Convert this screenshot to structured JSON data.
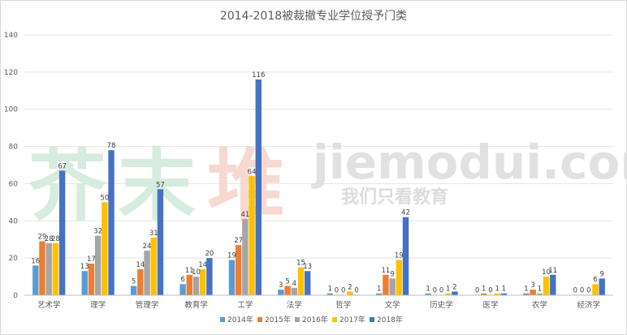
{
  "chart_data": {
    "type": "bar",
    "title": "2014-2018被裁撤专业学位授予门类",
    "categories": [
      "艺术学",
      "理学",
      "管理学",
      "教育学",
      "工学",
      "法学",
      "哲学",
      "文学",
      "历史学",
      "医学",
      "农学",
      "经济学"
    ],
    "series": [
      {
        "name": "2014年",
        "color": "#5b9bd5",
        "values": [
          16,
          13,
          5,
          6,
          19,
          3,
          1,
          1,
          1,
          0,
          1,
          0
        ]
      },
      {
        "name": "2015年",
        "color": "#ed7d31",
        "values": [
          29,
          17,
          14,
          11,
          27,
          5,
          0,
          11,
          0,
          1,
          3,
          0
        ]
      },
      {
        "name": "2016年",
        "color": "#a5a5a5",
        "values": [
          28,
          32,
          24,
          10,
          41,
          4,
          0,
          9,
          0,
          0,
          1,
          0
        ]
      },
      {
        "name": "2017年",
        "color": "#ffc000",
        "values": [
          28,
          50,
          31,
          14,
          64,
          15,
          2,
          19,
          1,
          1,
          10,
          6
        ]
      },
      {
        "name": "2018年",
        "color": "#4472c4",
        "values": [
          67,
          78,
          57,
          20,
          116,
          13,
          0,
          42,
          2,
          1,
          11,
          9
        ]
      }
    ],
    "yticks": [
      "0",
      "20",
      "40",
      "60",
      "80",
      "100",
      "120",
      "140"
    ],
    "ylim": [
      0,
      140
    ],
    "grid": true,
    "legend_position": "bottom",
    "data_labels": true
  },
  "watermark": {
    "cn_text": "芥末堆",
    "en_text": "jiemodui.com",
    "tagline": "我们只看教育"
  }
}
